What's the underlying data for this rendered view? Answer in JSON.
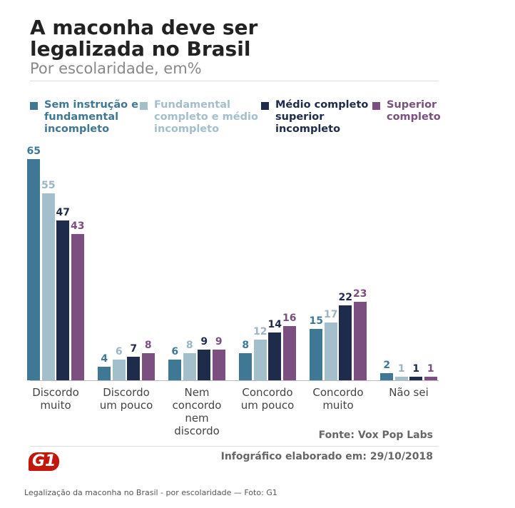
{
  "chart_data": {
    "type": "bar",
    "title": "A maconha deve ser legalizada no Brasil",
    "subtitle": "Por escolaridade, em%",
    "categories": [
      "Discordo muito",
      "Discordo um pouco",
      "Nem concordo nem discordo",
      "Concordo um pouco",
      "Concordo muito",
      "Não sei"
    ],
    "series": [
      {
        "name": "Sem instrução e fundamental incompleto",
        "color": "#3e7895",
        "values": [
          65,
          4,
          6,
          8,
          15,
          2
        ]
      },
      {
        "name": "Fundamental completo e médio incompleto",
        "color": "#a4bfcc",
        "values": [
          55,
          6,
          8,
          12,
          17,
          1
        ]
      },
      {
        "name": "Médio completo e superior incompleto",
        "color": "#1f2b4b",
        "values": [
          47,
          7,
          9,
          14,
          22,
          1
        ]
      },
      {
        "name": "Superior completo",
        "color": "#7b4f7f",
        "values": [
          43,
          8,
          9,
          16,
          23,
          1
        ]
      }
    ],
    "source": "Fonte: Vox Pop Labs",
    "note": "Infográfico elaborado em: 29/10/2018",
    "logo": "G1",
    "caption": "Legalização da maconha no Brasil - por escolaridade — Foto: G1"
  }
}
